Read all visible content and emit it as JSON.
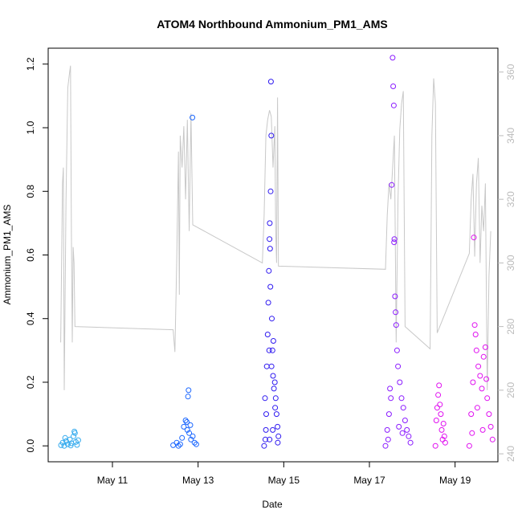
{
  "chart_data": {
    "type": "scatter",
    "title": "ATOM4 Northbound Ammonium_PM1_AMS",
    "xlabel": "Date",
    "ylabel": "Ammonium_PM1_AMS",
    "xlim": [
      "2018-05-09T12:00",
      "2018-05-20T00:00"
    ],
    "ylim": [
      -0.05,
      1.25
    ],
    "y2lim": [
      237.5,
      367.5
    ],
    "x_ticks": [
      {
        "date": "2018-05-11",
        "label": "May 11"
      },
      {
        "date": "2018-05-13",
        "label": "May 13"
      },
      {
        "date": "2018-05-15",
        "label": "May 15"
      },
      {
        "date": "2018-05-17",
        "label": "May 17"
      },
      {
        "date": "2018-05-19",
        "label": "May 19"
      }
    ],
    "y_ticks": [
      {
        "value": 0.0,
        "label": "0.0"
      },
      {
        "value": 0.2,
        "label": "0.2"
      },
      {
        "value": 0.4,
        "label": "0.4"
      },
      {
        "value": 0.6,
        "label": "0.6"
      },
      {
        "value": 0.8,
        "label": "0.8"
      },
      {
        "value": 1.0,
        "label": "1.0"
      },
      {
        "value": 1.2,
        "label": "1.2"
      }
    ],
    "y2_ticks": [
      {
        "value": 240,
        "label": "240"
      },
      {
        "value": 260,
        "label": "260"
      },
      {
        "value": 280,
        "label": "280"
      },
      {
        "value": 300,
        "label": "300"
      },
      {
        "value": 320,
        "label": "320"
      },
      {
        "value": 340,
        "label": "340"
      },
      {
        "value": 360,
        "label": "360"
      }
    ],
    "grid": false,
    "legend": "none",
    "series": [
      {
        "color": "#33aaee",
        "points": [
          [
            "2018-05-09T19:12",
            0.002
          ],
          [
            "2018-05-09T20:10",
            0.01
          ],
          [
            "2018-05-09T21:00",
            0.0
          ],
          [
            "2018-05-09T22:05",
            0.015
          ],
          [
            "2018-05-09T23:00",
            0.005
          ],
          [
            "2018-05-10T00:10",
            0.02
          ],
          [
            "2018-05-10T01:00",
            0.008
          ],
          [
            "2018-05-10T02:10",
            0.03
          ],
          [
            "2018-05-10T02:40",
            0.045
          ],
          [
            "2018-05-10T03:00",
            0.04
          ],
          [
            "2018-05-10T03:30",
            0.012
          ],
          [
            "2018-05-10T04:10",
            0.003
          ],
          [
            "2018-05-10T04:50",
            0.018
          ],
          [
            "2018-05-09T21:30",
            0.025
          ],
          [
            "2018-05-10T00:40",
            0.001
          ]
        ]
      },
      {
        "color": "#1a66ff",
        "points": [
          [
            "2018-05-12T10:00",
            0.002
          ],
          [
            "2018-05-12T12:00",
            0.01
          ],
          [
            "2018-05-12T14:00",
            0.005
          ],
          [
            "2018-05-12T15:00",
            0.025
          ],
          [
            "2018-05-12T16:00",
            0.06
          ],
          [
            "2018-05-12T17:00",
            0.08
          ],
          [
            "2018-05-12T17:40",
            0.075
          ],
          [
            "2018-05-12T18:00",
            0.05
          ],
          [
            "2018-05-12T18:20",
            0.155
          ],
          [
            "2018-05-12T18:40",
            0.175
          ],
          [
            "2018-05-12T19:00",
            0.04
          ],
          [
            "2018-05-12T20:00",
            0.02
          ],
          [
            "2018-05-12T20:50",
            1.032
          ],
          [
            "2018-05-12T21:00",
            0.03
          ],
          [
            "2018-05-12T22:00",
            0.01
          ],
          [
            "2018-05-12T23:00",
            0.005
          ],
          [
            "2018-05-12T13:00",
            0.0
          ],
          [
            "2018-05-12T19:40",
            0.065
          ]
        ]
      },
      {
        "color": "#2f1af0",
        "points": [
          [
            "2018-05-14T13:00",
            0.0
          ],
          [
            "2018-05-14T13:30",
            0.15
          ],
          [
            "2018-05-14T14:00",
            0.05
          ],
          [
            "2018-05-14T14:30",
            0.25
          ],
          [
            "2018-05-14T15:00",
            0.35
          ],
          [
            "2018-05-14T15:20",
            0.45
          ],
          [
            "2018-05-14T15:40",
            0.55
          ],
          [
            "2018-05-14T16:00",
            0.65
          ],
          [
            "2018-05-14T16:10",
            0.7
          ],
          [
            "2018-05-14T16:20",
            0.62
          ],
          [
            "2018-05-14T16:30",
            0.5
          ],
          [
            "2018-05-14T16:50",
            1.145
          ],
          [
            "2018-05-14T17:00",
            0.975
          ],
          [
            "2018-05-14T17:20",
            0.4
          ],
          [
            "2018-05-14T17:40",
            0.3
          ],
          [
            "2018-05-14T18:00",
            0.22
          ],
          [
            "2018-05-14T18:30",
            0.18
          ],
          [
            "2018-05-14T19:00",
            0.2
          ],
          [
            "2018-05-14T19:30",
            0.15
          ],
          [
            "2018-05-14T20:00",
            0.1
          ],
          [
            "2018-05-14T20:30",
            0.06
          ],
          [
            "2018-05-14T21:00",
            0.03
          ],
          [
            "2018-05-14T14:10",
            0.1
          ],
          [
            "2018-05-14T15:50",
            0.3
          ],
          [
            "2018-05-14T16:40",
            0.8
          ],
          [
            "2018-05-14T17:10",
            0.25
          ],
          [
            "2018-05-14T18:10",
            0.33
          ],
          [
            "2018-05-14T19:10",
            0.12
          ],
          [
            "2018-05-14T13:40",
            0.02
          ],
          [
            "2018-05-14T20:40",
            0.01
          ],
          [
            "2018-05-14T17:50",
            0.05
          ],
          [
            "2018-05-14T16:05",
            0.02
          ]
        ]
      },
      {
        "color": "#8a1aff",
        "points": [
          [
            "2018-05-17T09:00",
            0.0
          ],
          [
            "2018-05-17T10:00",
            0.05
          ],
          [
            "2018-05-17T11:00",
            0.1
          ],
          [
            "2018-05-17T12:00",
            0.15
          ],
          [
            "2018-05-17T12:30",
            0.82
          ],
          [
            "2018-05-17T13:00",
            1.22
          ],
          [
            "2018-05-17T13:20",
            1.13
          ],
          [
            "2018-05-17T13:40",
            1.07
          ],
          [
            "2018-05-17T14:00",
            0.65
          ],
          [
            "2018-05-17T14:20",
            0.47
          ],
          [
            "2018-05-17T14:40",
            0.42
          ],
          [
            "2018-05-17T15:00",
            0.38
          ],
          [
            "2018-05-17T15:30",
            0.3
          ],
          [
            "2018-05-17T16:00",
            0.25
          ],
          [
            "2018-05-17T17:00",
            0.2
          ],
          [
            "2018-05-17T18:00",
            0.15
          ],
          [
            "2018-05-17T19:00",
            0.12
          ],
          [
            "2018-05-17T20:00",
            0.08
          ],
          [
            "2018-05-17T21:00",
            0.05
          ],
          [
            "2018-05-17T22:00",
            0.03
          ],
          [
            "2018-05-17T23:00",
            0.01
          ],
          [
            "2018-05-17T10:30",
            0.02
          ],
          [
            "2018-05-17T16:30",
            0.06
          ],
          [
            "2018-05-17T13:50",
            0.64
          ],
          [
            "2018-05-17T11:30",
            0.18
          ],
          [
            "2018-05-17T18:30",
            0.04
          ]
        ]
      },
      {
        "color": "#e010f0",
        "points": [
          [
            "2018-05-18T13:00",
            0.0
          ],
          [
            "2018-05-18T13:30",
            0.08
          ],
          [
            "2018-05-18T14:00",
            0.12
          ],
          [
            "2018-05-18T14:30",
            0.16
          ],
          [
            "2018-05-18T15:00",
            0.19
          ],
          [
            "2018-05-18T15:30",
            0.13
          ],
          [
            "2018-05-18T16:00",
            0.1
          ],
          [
            "2018-05-18T16:30",
            0.05
          ],
          [
            "2018-05-18T17:00",
            0.02
          ],
          [
            "2018-05-18T17:30",
            0.07
          ],
          [
            "2018-05-18T18:00",
            0.03
          ],
          [
            "2018-05-18T18:30",
            0.01
          ],
          [
            "2018-05-19T08:00",
            0.0
          ],
          [
            "2018-05-19T09:00",
            0.1
          ],
          [
            "2018-05-19T10:00",
            0.2
          ],
          [
            "2018-05-19T10:30",
            0.655
          ],
          [
            "2018-05-19T11:00",
            0.38
          ],
          [
            "2018-05-19T11:30",
            0.35
          ],
          [
            "2018-05-19T12:00",
            0.3
          ],
          [
            "2018-05-19T13:00",
            0.25
          ],
          [
            "2018-05-19T14:00",
            0.22
          ],
          [
            "2018-05-19T15:00",
            0.18
          ],
          [
            "2018-05-19T16:00",
            0.28
          ],
          [
            "2018-05-19T17:00",
            0.31
          ],
          [
            "2018-05-19T18:00",
            0.15
          ],
          [
            "2018-05-19T19:00",
            0.1
          ],
          [
            "2018-05-19T20:00",
            0.06
          ],
          [
            "2018-05-19T21:00",
            0.02
          ],
          [
            "2018-05-19T09:30",
            0.04
          ],
          [
            "2018-05-19T12:30",
            0.12
          ],
          [
            "2018-05-19T15:30",
            0.05
          ],
          [
            "2018-05-19T17:30",
            0.21
          ]
        ]
      }
    ],
    "secondary_line": {
      "color": "#c8c8c8",
      "axis": "right",
      "points": [
        [
          "2018-05-09T19:00",
          275
        ],
        [
          "2018-05-09T20:00",
          325
        ],
        [
          "2018-05-09T20:30",
          330
        ],
        [
          "2018-05-09T21:00",
          260
        ],
        [
          "2018-05-09T22:00",
          320
        ],
        [
          "2018-05-09T23:00",
          355
        ],
        [
          "2018-05-10T00:00",
          360
        ],
        [
          "2018-05-10T00:30",
          362
        ],
        [
          "2018-05-10T01:00",
          310
        ],
        [
          "2018-05-10T01:30",
          275
        ],
        [
          "2018-05-10T02:00",
          305
        ],
        [
          "2018-05-10T02:30",
          300
        ],
        [
          "2018-05-10T03:00",
          280
        ],
        [
          "2018-05-12T10:00",
          279
        ],
        [
          "2018-05-12T11:00",
          272
        ],
        [
          "2018-05-12T12:00",
          300
        ],
        [
          "2018-05-12T13:00",
          335
        ],
        [
          "2018-05-12T13:30",
          290
        ],
        [
          "2018-05-12T14:00",
          340
        ],
        [
          "2018-05-12T15:00",
          330
        ],
        [
          "2018-05-12T16:00",
          343
        ],
        [
          "2018-05-12T17:00",
          320
        ],
        [
          "2018-05-12T18:00",
          345
        ],
        [
          "2018-05-12T19:00",
          310
        ],
        [
          "2018-05-12T20:00",
          347
        ],
        [
          "2018-05-12T21:00",
          312
        ],
        [
          "2018-05-14T12:00",
          300
        ],
        [
          "2018-05-14T13:00",
          315
        ],
        [
          "2018-05-14T14:00",
          340
        ],
        [
          "2018-05-14T15:00",
          345
        ],
        [
          "2018-05-14T16:00",
          348
        ],
        [
          "2018-05-14T17:00",
          346
        ],
        [
          "2018-05-14T18:00",
          330
        ],
        [
          "2018-05-14T19:00",
          343
        ],
        [
          "2018-05-14T19:30",
          310
        ],
        [
          "2018-05-14T20:00",
          300
        ],
        [
          "2018-05-14T20:30",
          352
        ],
        [
          "2018-05-14T21:00",
          299
        ],
        [
          "2018-05-17T09:00",
          298
        ],
        [
          "2018-05-17T10:00",
          315
        ],
        [
          "2018-05-17T11:00",
          325
        ],
        [
          "2018-05-17T12:00",
          320
        ],
        [
          "2018-05-17T13:00",
          330
        ],
        [
          "2018-05-17T14:00",
          340
        ],
        [
          "2018-05-17T15:00",
          275
        ],
        [
          "2018-05-17T16:00",
          320
        ],
        [
          "2018-05-17T17:00",
          342
        ],
        [
          "2018-05-17T18:00",
          350
        ],
        [
          "2018-05-17T19:00",
          354
        ],
        [
          "2018-05-17T20:00",
          280
        ],
        [
          "2018-05-18T10:00",
          273
        ],
        [
          "2018-05-18T11:00",
          340
        ],
        [
          "2018-05-18T12:00",
          358
        ],
        [
          "2018-05-18T13:00",
          350
        ],
        [
          "2018-05-18T14:00",
          278
        ],
        [
          "2018-05-19T08:00",
          303
        ],
        [
          "2018-05-19T09:00",
          320
        ],
        [
          "2018-05-19T10:00",
          328
        ],
        [
          "2018-05-19T11:00",
          302
        ],
        [
          "2018-05-19T12:00",
          325
        ],
        [
          "2018-05-19T13:00",
          333
        ],
        [
          "2018-05-19T14:00",
          300
        ],
        [
          "2018-05-19T15:00",
          318
        ],
        [
          "2018-05-19T16:00",
          310
        ],
        [
          "2018-05-19T17:00",
          325
        ],
        [
          "2018-05-19T18:00",
          260
        ],
        [
          "2018-05-19T19:00",
          296
        ],
        [
          "2018-05-19T20:00",
          310
        ]
      ]
    }
  }
}
